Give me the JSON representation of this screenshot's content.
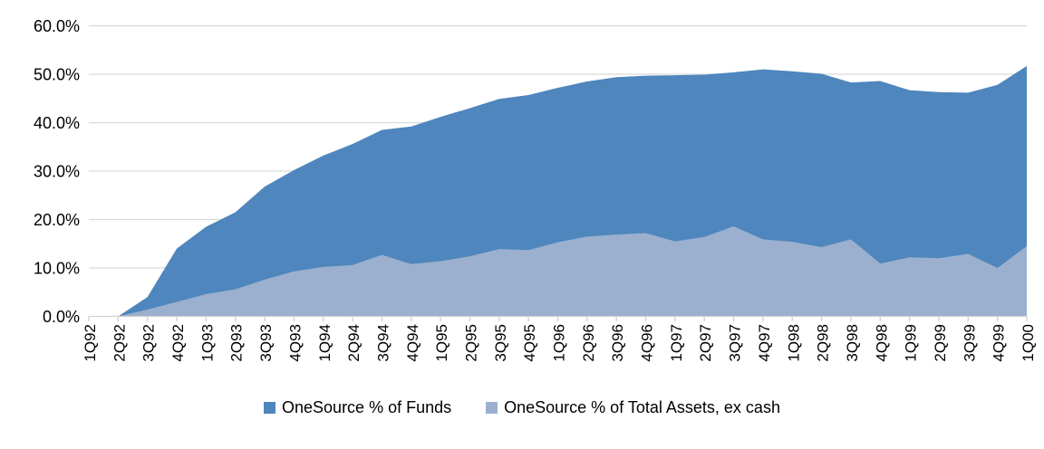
{
  "chart_data": {
    "type": "area",
    "title": "",
    "xlabel": "",
    "ylabel": "",
    "categories": [
      "1Q92",
      "2Q92",
      "3Q92",
      "4Q92",
      "1Q93",
      "2Q93",
      "3Q93",
      "4Q93",
      "1Q94",
      "2Q94",
      "3Q94",
      "4Q94",
      "1Q95",
      "2Q95",
      "3Q95",
      "4Q95",
      "1Q96",
      "2Q96",
      "3Q96",
      "4Q96",
      "1Q97",
      "2Q97",
      "3Q97",
      "4Q97",
      "1Q98",
      "2Q98",
      "3Q98",
      "4Q98",
      "1Q99",
      "2Q99",
      "3Q99",
      "4Q99",
      "1Q00"
    ],
    "series": [
      {
        "name": "OneSource % of Funds",
        "color": "#4E86BD",
        "values": [
          0.0,
          0.0,
          4.0,
          14.0,
          18.5,
          21.5,
          26.8,
          30.2,
          33.2,
          35.6,
          38.5,
          39.2,
          41.2,
          43.0,
          44.9,
          45.7,
          47.2,
          48.5,
          49.4,
          49.7,
          49.8,
          49.9,
          50.4,
          51.0,
          50.6,
          50.1,
          48.3,
          48.6,
          46.7,
          46.3,
          46.2,
          47.8,
          51.7
        ]
      },
      {
        "name": "OneSource % of Total Assets, ex cash",
        "color": "#9BB0CE",
        "values": [
          0.0,
          0.0,
          1.4,
          3.0,
          4.6,
          5.6,
          7.6,
          9.3,
          10.2,
          10.6,
          12.7,
          10.8,
          11.4,
          12.4,
          13.9,
          13.7,
          15.3,
          16.5,
          16.9,
          17.2,
          15.5,
          16.4,
          18.6,
          15.9,
          15.4,
          14.3,
          15.9,
          10.9,
          12.2,
          12.0,
          12.9,
          10.0,
          14.5
        ]
      }
    ],
    "ylim": [
      0,
      60
    ],
    "y_tick_step": 10,
    "y_tick_labels": [
      "0.0%",
      "10.0%",
      "20.0%",
      "30.0%",
      "40.0%",
      "50.0%",
      "60.0%"
    ],
    "grid": true,
    "legend_position": "bottom",
    "overlap": "series drawn from zero baseline, second series in front (not stacked)",
    "colors": {
      "gridline": "#D9D9D9",
      "axis": "#D0D0D0",
      "tick": "#D0D0D0",
      "label_text": "#000000",
      "background": "#FFFFFF"
    }
  }
}
